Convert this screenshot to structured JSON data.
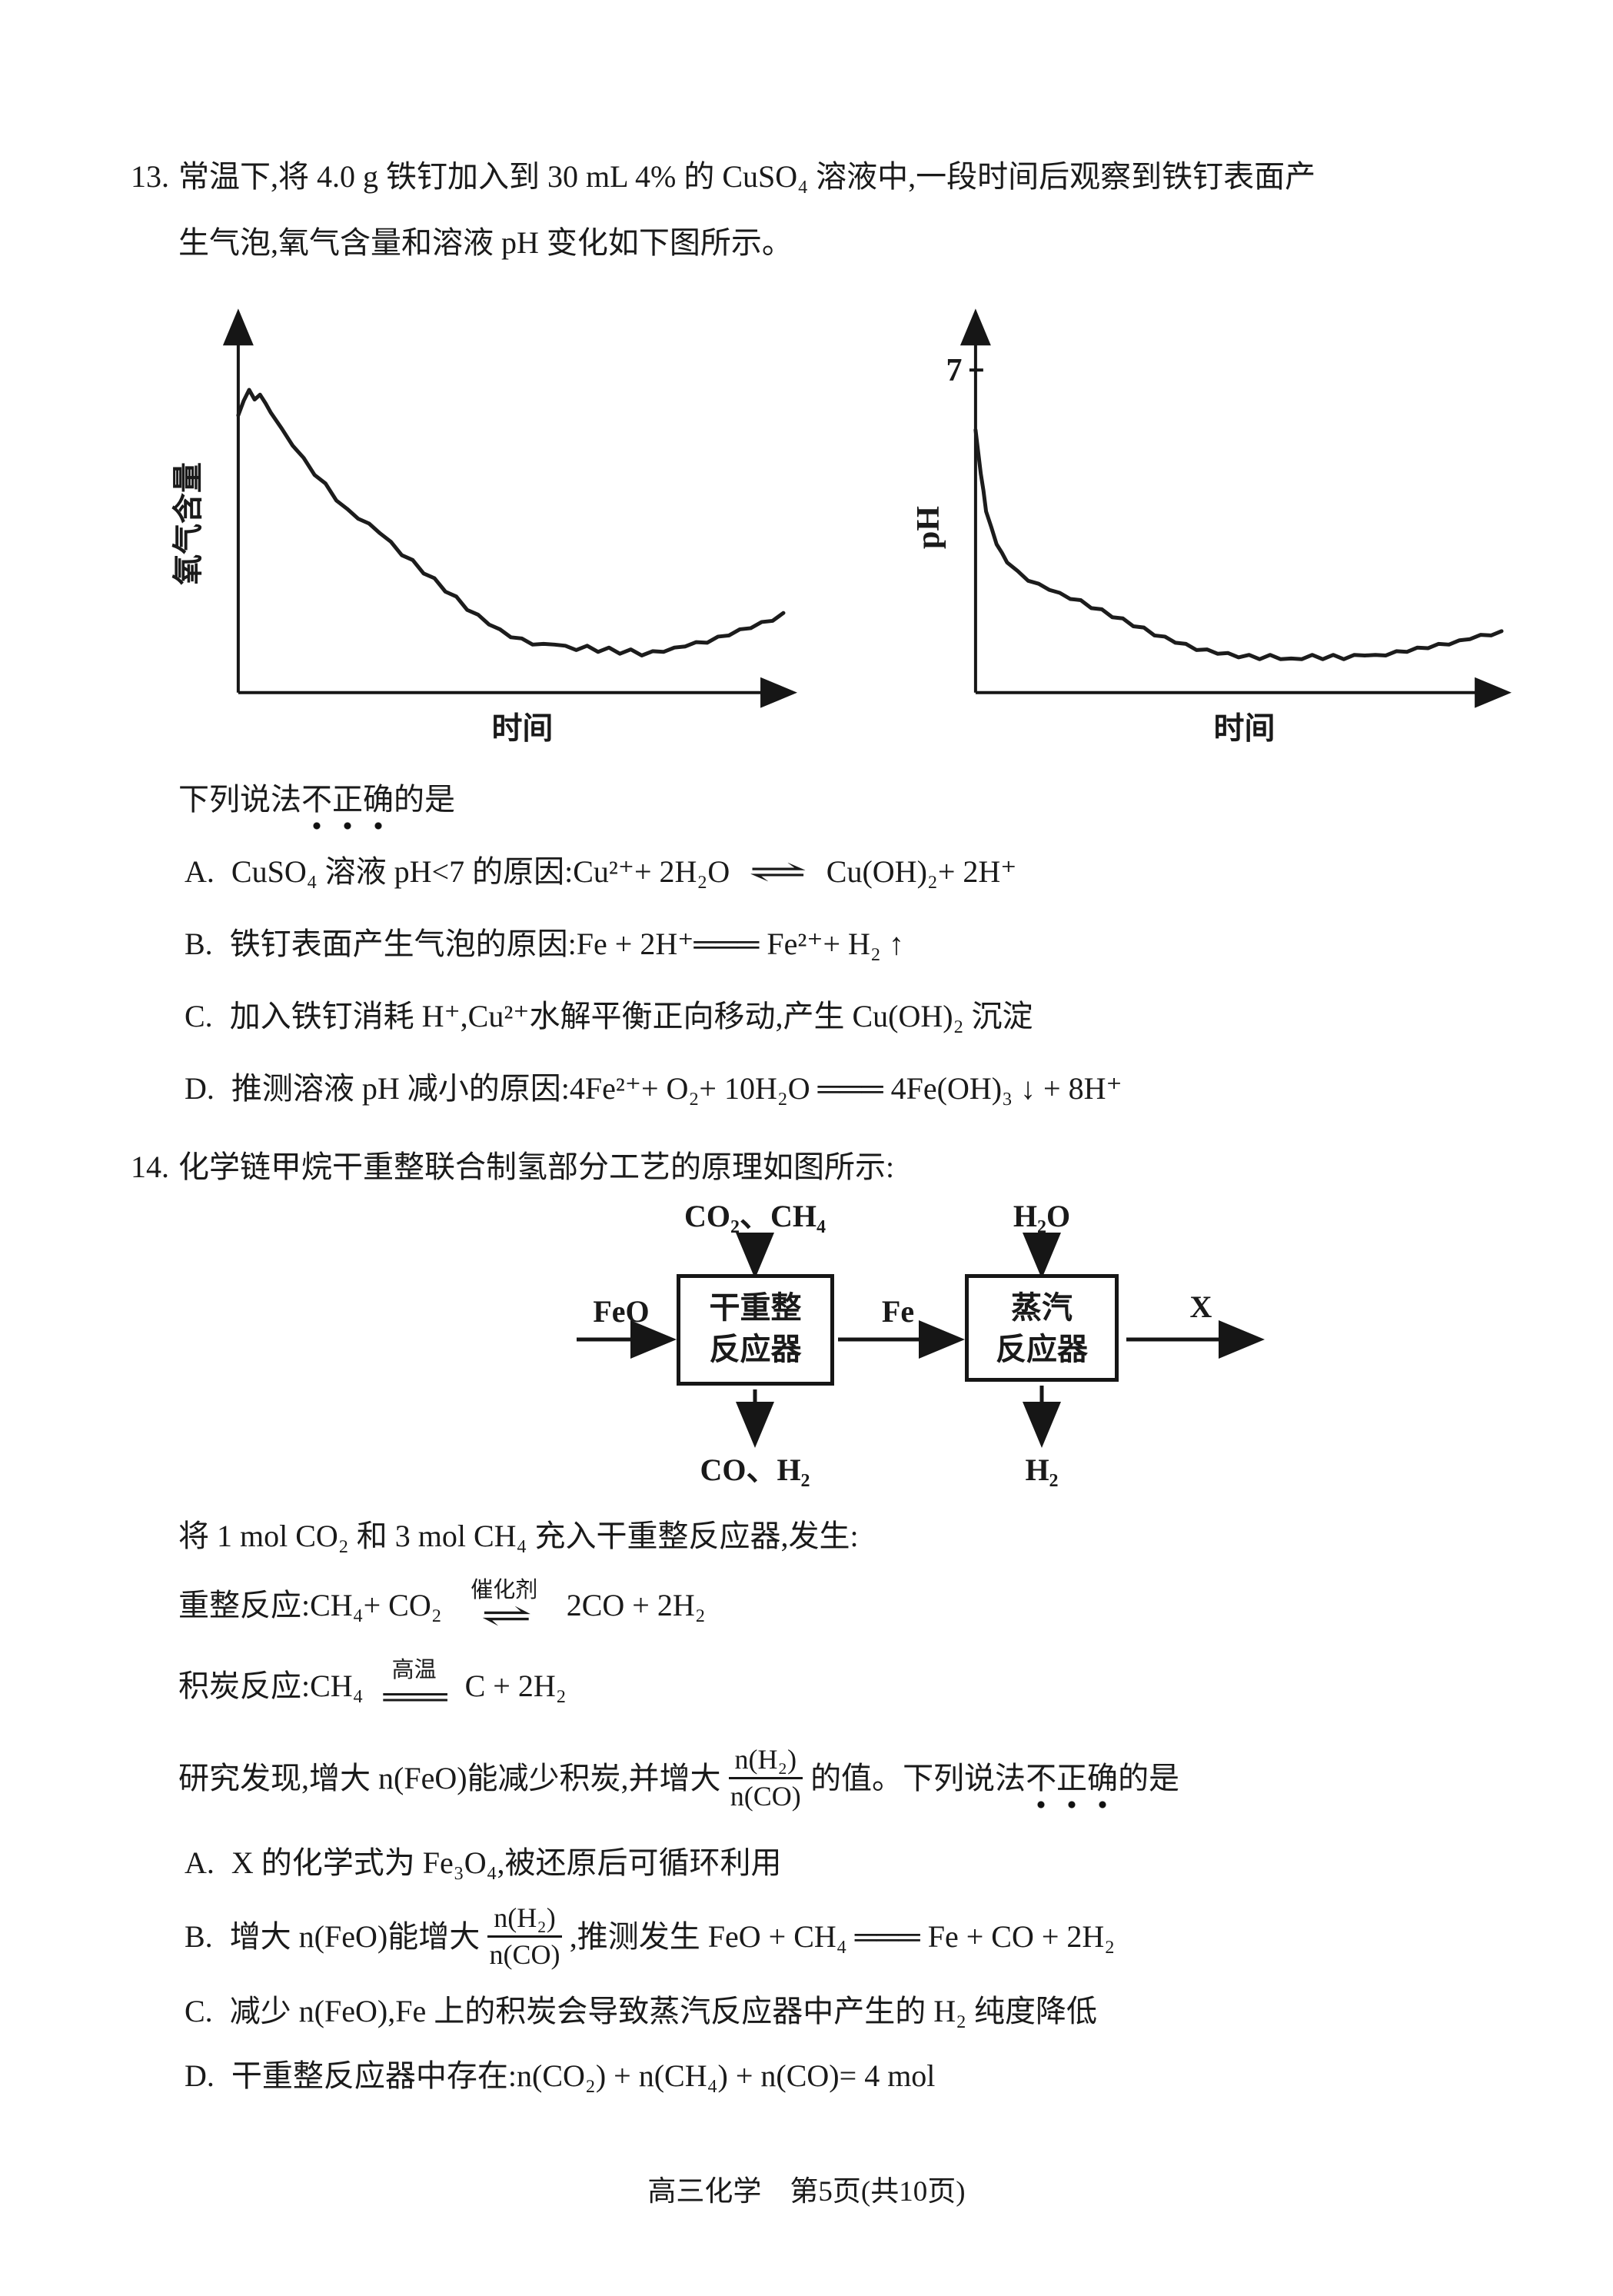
{
  "q13": {
    "number": "13.",
    "stem_line1": "常温下,将 4.0 g 铁钉加入到 30 mL 4% 的 CuSO₄ 溶液中,一段时间后观察到铁钉表面产",
    "stem_line2": "生气泡,氧气含量和溶液 pH 变化如下图所示。",
    "prompt": {
      "pre": "下列说法",
      "emph": "不正确",
      "post": "的是"
    },
    "options": {
      "A": {
        "label": "A.",
        "pre": "CuSO₄ 溶液 pH<7 的原因:Cu²⁺+ 2H₂O",
        "arrow": "⇌",
        "post": "Cu(OH)₂+ 2H⁺"
      },
      "B": {
        "label": "B.",
        "text": "铁钉表面产生气泡的原因:Fe + 2H⁺═══ Fe²⁺+ H₂ ↑"
      },
      "C": {
        "label": "C.",
        "text": "加入铁钉消耗 H⁺,Cu²⁺水解平衡正向移动,产生 Cu(OH)₂ 沉淀"
      },
      "D": {
        "label": "D.",
        "text": "推测溶液 pH 减小的原因:4Fe²⁺+ O₂+ 10H₂O ═══ 4Fe(OH)₃ ↓ + 8H⁺"
      }
    }
  },
  "chart_data": [
    {
      "type": "line",
      "xlabel": "时间",
      "ylabel": "氧气含量",
      "y_ticks": [],
      "x_ticks": [],
      "points": [
        [
          0.0,
          0.76
        ],
        [
          0.01,
          0.8
        ],
        [
          0.02,
          0.83
        ],
        [
          0.03,
          0.8
        ],
        [
          0.04,
          0.82
        ],
        [
          0.05,
          0.79
        ],
        [
          0.06,
          0.77
        ],
        [
          0.08,
          0.72
        ],
        [
          0.1,
          0.68
        ],
        [
          0.12,
          0.64
        ],
        [
          0.14,
          0.6
        ],
        [
          0.16,
          0.57
        ],
        [
          0.18,
          0.53
        ],
        [
          0.2,
          0.5
        ],
        [
          0.22,
          0.48
        ],
        [
          0.24,
          0.46
        ],
        [
          0.26,
          0.44
        ],
        [
          0.28,
          0.41
        ],
        [
          0.3,
          0.38
        ],
        [
          0.32,
          0.36
        ],
        [
          0.34,
          0.33
        ],
        [
          0.36,
          0.31
        ],
        [
          0.38,
          0.28
        ],
        [
          0.4,
          0.26
        ],
        [
          0.42,
          0.23
        ],
        [
          0.44,
          0.21
        ],
        [
          0.46,
          0.19
        ],
        [
          0.48,
          0.17
        ],
        [
          0.5,
          0.155
        ],
        [
          0.52,
          0.145
        ],
        [
          0.54,
          0.135
        ],
        [
          0.56,
          0.13
        ],
        [
          0.58,
          0.135
        ],
        [
          0.6,
          0.125
        ],
        [
          0.62,
          0.12
        ],
        [
          0.64,
          0.125
        ],
        [
          0.66,
          0.115
        ],
        [
          0.68,
          0.12
        ],
        [
          0.7,
          0.11
        ],
        [
          0.72,
          0.115
        ],
        [
          0.74,
          0.105
        ],
        [
          0.76,
          0.11
        ],
        [
          0.78,
          0.115
        ],
        [
          0.8,
          0.12
        ],
        [
          0.82,
          0.13
        ],
        [
          0.84,
          0.135
        ],
        [
          0.86,
          0.14
        ],
        [
          0.88,
          0.15
        ],
        [
          0.9,
          0.16
        ],
        [
          0.92,
          0.17
        ],
        [
          0.94,
          0.18
        ],
        [
          0.96,
          0.19
        ],
        [
          0.98,
          0.2
        ],
        [
          1.0,
          0.215
        ]
      ]
    },
    {
      "type": "line",
      "xlabel": "时间",
      "ylabel": "pH",
      "y_ticks": [
        {
          "value": 7,
          "label": "7"
        }
      ],
      "x_ticks": [],
      "points": [
        [
          0.0,
          0.72
        ],
        [
          0.005,
          0.66
        ],
        [
          0.01,
          0.6
        ],
        [
          0.015,
          0.55
        ],
        [
          0.02,
          0.5
        ],
        [
          0.03,
          0.45
        ],
        [
          0.04,
          0.41
        ],
        [
          0.05,
          0.38
        ],
        [
          0.06,
          0.36
        ],
        [
          0.08,
          0.33
        ],
        [
          0.1,
          0.31
        ],
        [
          0.12,
          0.295
        ],
        [
          0.14,
          0.285
        ],
        [
          0.16,
          0.27
        ],
        [
          0.18,
          0.26
        ],
        [
          0.2,
          0.25
        ],
        [
          0.22,
          0.235
        ],
        [
          0.24,
          0.225
        ],
        [
          0.26,
          0.21
        ],
        [
          0.28,
          0.2
        ],
        [
          0.3,
          0.185
        ],
        [
          0.32,
          0.175
        ],
        [
          0.34,
          0.16
        ],
        [
          0.36,
          0.15
        ],
        [
          0.38,
          0.14
        ],
        [
          0.4,
          0.13
        ],
        [
          0.42,
          0.12
        ],
        [
          0.44,
          0.115
        ],
        [
          0.46,
          0.11
        ],
        [
          0.48,
          0.105
        ],
        [
          0.5,
          0.1
        ],
        [
          0.52,
          0.1
        ],
        [
          0.54,
          0.095
        ],
        [
          0.56,
          0.1
        ],
        [
          0.58,
          0.095
        ],
        [
          0.6,
          0.09
        ],
        [
          0.62,
          0.095
        ],
        [
          0.64,
          0.1
        ],
        [
          0.66,
          0.095
        ],
        [
          0.68,
          0.1
        ],
        [
          0.7,
          0.095
        ],
        [
          0.72,
          0.1
        ],
        [
          0.74,
          0.105
        ],
        [
          0.76,
          0.1
        ],
        [
          0.78,
          0.105
        ],
        [
          0.8,
          0.11
        ],
        [
          0.82,
          0.115
        ],
        [
          0.84,
          0.12
        ],
        [
          0.86,
          0.125
        ],
        [
          0.88,
          0.13
        ],
        [
          0.9,
          0.135
        ],
        [
          0.92,
          0.14
        ],
        [
          0.94,
          0.15
        ],
        [
          0.96,
          0.155
        ],
        [
          0.98,
          0.16
        ],
        [
          1.0,
          0.165
        ]
      ]
    }
  ],
  "q14": {
    "number": "14.",
    "header": "化学链甲烷干重整联合制氢部分工艺的原理如图所示:",
    "diagram": {
      "in_top1": "CO₂、CH₄",
      "in_top2": "H₂O",
      "in_left": "FeO",
      "mid": "Fe",
      "out_right": "X",
      "box1_line1": "干重整",
      "box1_line2": "反应器",
      "box2_line1": "蒸汽",
      "box2_line2": "反应器",
      "out_bottom1": "CO、H₂",
      "out_bottom2": "H₂"
    },
    "para1": "将 1 mol CO₂ 和 3 mol CH₄ 充入干重整反应器,发生:",
    "reform": {
      "lhs": "重整反应:CH₄+ CO₂",
      "over": "催化剂",
      "arrow": "⇌",
      "rhs": "2CO + 2H₂"
    },
    "coke": {
      "lhs": "积炭反应:CH₄",
      "over": "高温",
      "arrow": "═══",
      "rhs": "C + 2H₂"
    },
    "research": {
      "pre": "研究发现,增大 n(FeO)能减少积炭,并增大",
      "frac": {
        "num": "n(H₂)",
        "den": "n(CO)"
      },
      "mid": "的值。",
      "prompt_pre": "下列说法",
      "emph": "不正确",
      "post": "的是"
    },
    "options": {
      "A": {
        "label": "A.",
        "text": "X 的化学式为 Fe₃O₄,被还原后可循环利用"
      },
      "B": {
        "label": "B.",
        "pre": "增大 n(FeO)能增大",
        "frac": {
          "num": "n(H₂)",
          "den": "n(CO)"
        },
        "post": ",推测发生 FeO + CH₄ ═══ Fe + CO + 2H₂"
      },
      "C": {
        "label": "C.",
        "text": "减少 n(FeO),Fe 上的积炭会导致蒸汽反应器中产生的 H₂ 纯度降低"
      },
      "D": {
        "label": "D.",
        "text": "干重整反应器中存在:n(CO₂) + n(CH₄) + n(CO)= 4 mol"
      }
    }
  },
  "footer": "高三化学　第5页(共10页)"
}
